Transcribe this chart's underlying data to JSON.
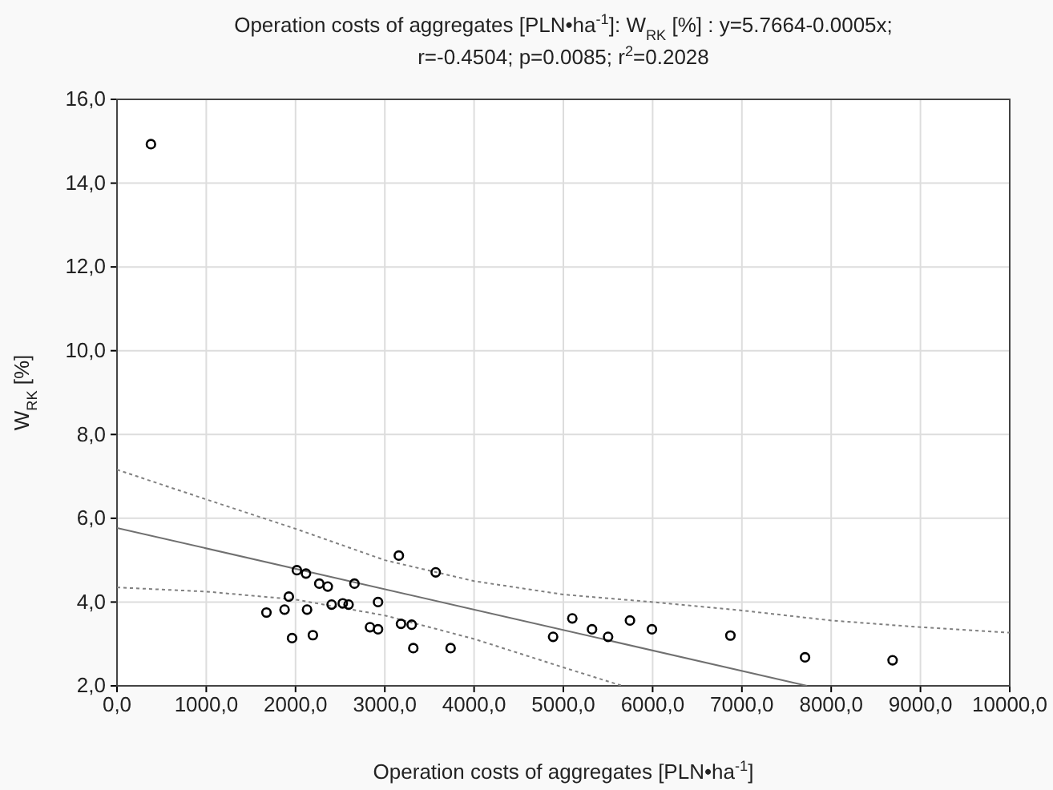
{
  "chart_data": {
    "type": "scatter",
    "title": "Operation costs of aggregates [PLN•ha$^{-1}$]: W$_{RK}$ [%] : y=5.7664-0.0005x;",
    "subtitle": "r=-0.4504; p=0.0085; r$^{2}$=0.2028",
    "xlabel": "Operation costs of aggregates [PLN•ha$^{-1}$]",
    "ylabel": "W$_{RK}$ [%]",
    "xlim": [
      0,
      10000
    ],
    "ylim": [
      2,
      16
    ],
    "xticks": [
      {
        "value": 0,
        "label": "0,0"
      },
      {
        "value": 1000,
        "label": "1000,0"
      },
      {
        "value": 2000,
        "label": "2000,0"
      },
      {
        "value": 3000,
        "label": "3000,0"
      },
      {
        "value": 4000,
        "label": "4000,0"
      },
      {
        "value": 5000,
        "label": "5000,0"
      },
      {
        "value": 6000,
        "label": "6000,0"
      },
      {
        "value": 7000,
        "label": "7000,0"
      },
      {
        "value": 8000,
        "label": "8000,0"
      },
      {
        "value": 9000,
        "label": "9000,0"
      },
      {
        "value": 10000,
        "label": "10000,0"
      }
    ],
    "yticks": [
      {
        "value": 2,
        "label": "2,0"
      },
      {
        "value": 4,
        "label": "4,0"
      },
      {
        "value": 6,
        "label": "6,0"
      },
      {
        "value": 8,
        "label": "8,0"
      },
      {
        "value": 10,
        "label": "10,0"
      },
      {
        "value": 12,
        "label": "12,0"
      },
      {
        "value": 14,
        "label": "14,0"
      },
      {
        "value": 16,
        "label": "16,0"
      }
    ],
    "grid": true,
    "series": [
      {
        "marker": "circle",
        "color": "#000000",
        "x": [
          380,
          1674,
          1877,
          1925,
          1961,
          2015,
          2117,
          2129,
          2194,
          2266,
          2361,
          2404,
          2529,
          2594,
          2660,
          2834,
          2924,
          2924,
          3157,
          3181,
          3301,
          3319,
          3570,
          3737,
          4885,
          5100,
          5321,
          5501,
          5746,
          5992,
          6871,
          7707,
          8688
        ],
        "values": [
          14.93,
          3.75,
          3.82,
          4.13,
          3.14,
          4.76,
          4.68,
          3.82,
          3.21,
          4.44,
          4.37,
          3.94,
          3.97,
          3.94,
          4.44,
          3.4,
          3.35,
          4.0,
          5.11,
          3.48,
          3.46,
          2.9,
          4.71,
          2.9,
          3.17,
          3.61,
          3.35,
          3.17,
          3.56,
          3.35,
          3.2,
          2.68,
          2.61
        ]
      },
      {
        "type": "line",
        "marker": "none",
        "line_style": "solid",
        "color": "#707070",
        "x": [
          0,
          7730
        ],
        "values": [
          5.77,
          2.0
        ]
      },
      {
        "type": "line",
        "marker": "none",
        "line_style": "dotted",
        "color": "#808080",
        "x": [
          0,
          1000,
          2000,
          3000,
          4000,
          5000,
          6000,
          7000,
          8000,
          9000,
          10000
        ],
        "values": [
          7.16,
          6.45,
          5.75,
          5.0,
          4.5,
          4.18,
          4.0,
          3.8,
          3.56,
          3.4,
          3.27
        ]
      },
      {
        "type": "line",
        "marker": "none",
        "line_style": "dotted",
        "color": "#808080",
        "x": [
          0,
          1000,
          2000,
          3000,
          4000,
          5000,
          5660
        ],
        "values": [
          4.35,
          4.25,
          4.06,
          3.68,
          3.12,
          2.44,
          2.0
        ]
      }
    ]
  }
}
